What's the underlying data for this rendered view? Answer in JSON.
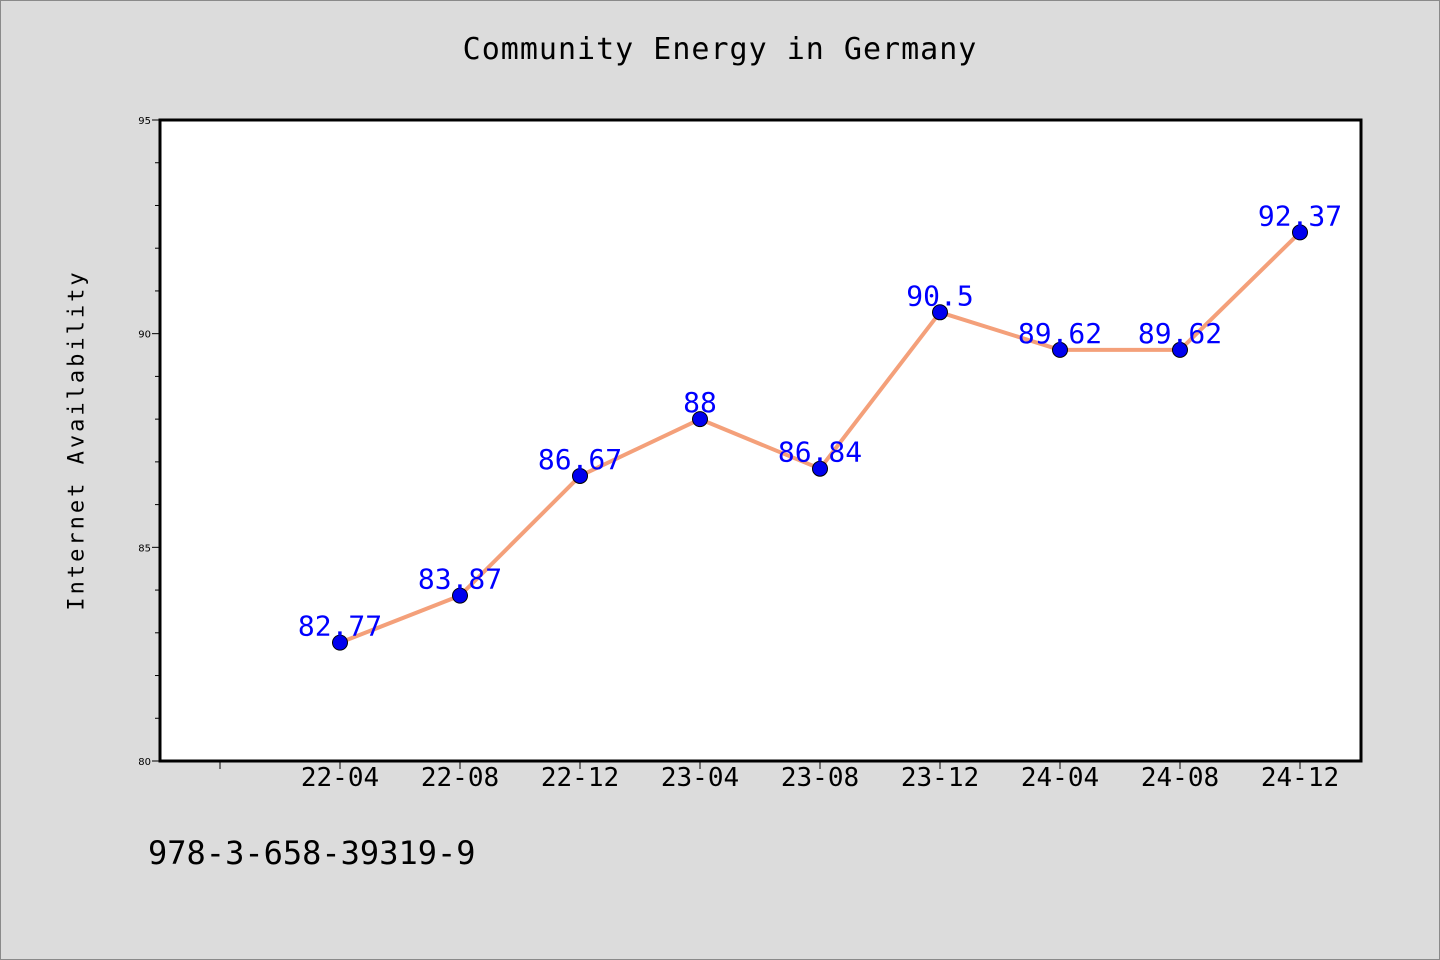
{
  "chart_data": {
    "type": "line",
    "title": "Community Energy in Germany",
    "xlabel": "",
    "ylabel": "Internet Availability",
    "categories": [
      "22-04",
      "22-08",
      "22-12",
      "23-04",
      "23-08",
      "23-12",
      "24-04",
      "24-08",
      "24-12"
    ],
    "series": [
      {
        "values": [
          82.77,
          83.87,
          86.67,
          88,
          86.84,
          90.5,
          89.62,
          89.62,
          92.37
        ]
      }
    ],
    "data_labels": [
      "82.77",
      "83.87",
      "86.67",
      "88",
      "86.84",
      "90.5",
      "89.62",
      "89.62",
      "92.37"
    ],
    "ylim": [
      80,
      95
    ],
    "yticks": [
      80,
      85,
      90,
      95
    ],
    "grid": false,
    "colors": {
      "line": "#f4a07a",
      "marker": "#0000ee",
      "label": "#0000ff"
    }
  },
  "footer_text": "978-3-658-39319-9"
}
